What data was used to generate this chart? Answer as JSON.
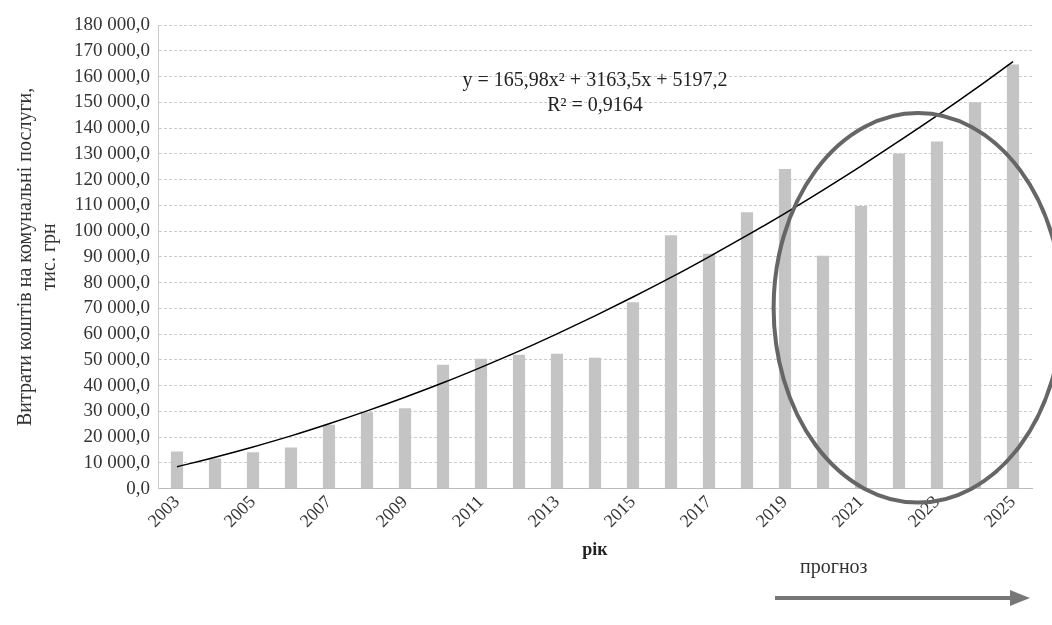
{
  "chart_data": {
    "type": "bar",
    "xlabel": "рік",
    "ylabel": "Витрати коштів на комунальні послуги, тис. грн",
    "categories": [
      "2003",
      null,
      "2005",
      null,
      "2007",
      null,
      "2009",
      null,
      "2011",
      null,
      "2013",
      null,
      "2015",
      null,
      "2017",
      null,
      "2019",
      null,
      "2021",
      null,
      "2023",
      null,
      "2025"
    ],
    "series": [
      {
        "color": "#c4c4c4",
        "values": [
          14400,
          11700,
          14100,
          16000,
          24800,
          29700,
          31200,
          48100,
          50400,
          52000,
          52400,
          50800,
          72400,
          98400,
          91200,
          107300,
          124100,
          90400,
          109700,
          130100,
          134800,
          150000,
          164700
        ]
      },
      {
        "type": "line",
        "color": "#000000",
        "values": [
          8500,
          12200,
          16200,
          20500,
          25200,
          30200,
          35500,
          41100,
          47100,
          53400,
          60100,
          67100,
          74400,
          82000,
          90000,
          98300,
          106900,
          115900,
          125200,
          134900,
          144800,
          155100,
          165800
        ]
      }
    ],
    "ylim": [
      0,
      180000
    ],
    "yticks": [
      {
        "value": 0,
        "label": "0,0"
      },
      {
        "value": 10000,
        "label": "10 000,0"
      },
      {
        "value": 20000,
        "label": "20 000,0"
      },
      {
        "value": 30000,
        "label": "30 000,0"
      },
      {
        "value": 40000,
        "label": "40 000,0"
      },
      {
        "value": 50000,
        "label": "50 000,0"
      },
      {
        "value": 60000,
        "label": "60 000,0"
      },
      {
        "value": 70000,
        "label": "70 000,0"
      },
      {
        "value": 80000,
        "label": "80 000,0"
      },
      {
        "value": 90000,
        "label": "90 000,0"
      },
      {
        "value": 100000,
        "label": "100 000,0"
      },
      {
        "value": 110000,
        "label": "110 000,0"
      },
      {
        "value": 120000,
        "label": "120 000,0"
      },
      {
        "value": 130000,
        "label": "130 000,0"
      },
      {
        "value": 140000,
        "label": "140 000,0"
      },
      {
        "value": 150000,
        "label": "150 000,0"
      },
      {
        "value": 160000,
        "label": "160 000,0"
      },
      {
        "value": 170000,
        "label": "170 000,0"
      },
      {
        "value": 180000,
        "label": "180 000,0"
      }
    ],
    "grid": "y",
    "legend": false,
    "marker": "none",
    "line_style": "solid",
    "annotations": [
      "y = 165,98x² + 3163,5x + 5197,2",
      "R² = 0,9164",
      "прогноз"
    ]
  }
}
